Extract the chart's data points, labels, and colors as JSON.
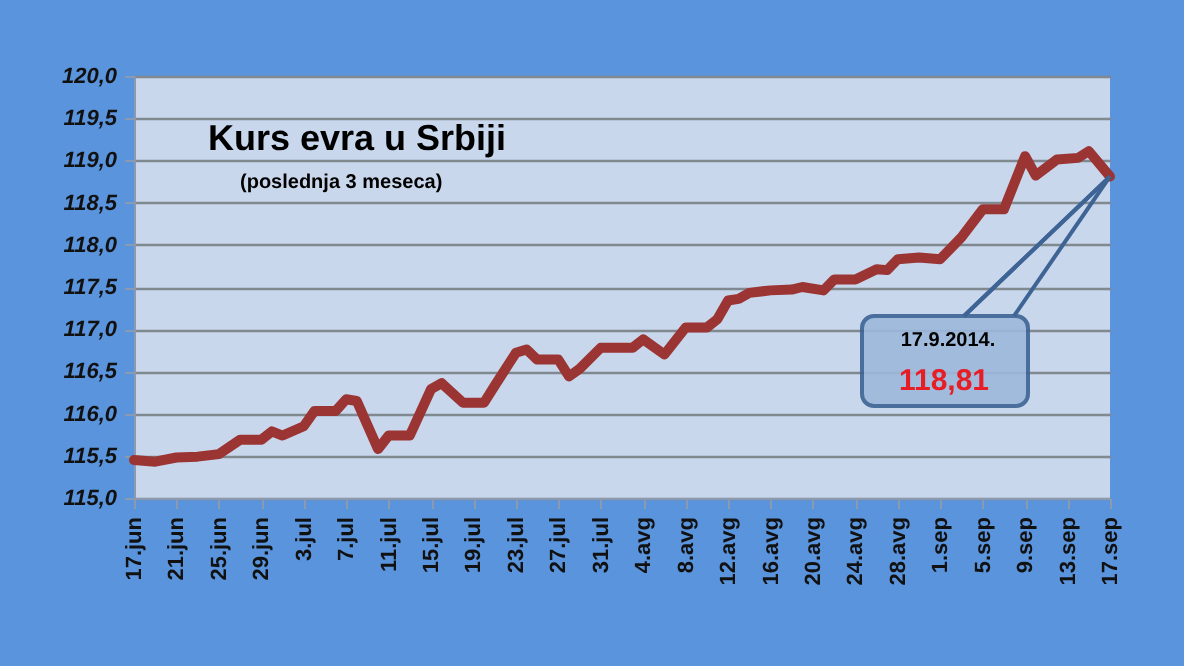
{
  "chart_data": {
    "type": "line",
    "title": "Kurs evra u Srbiji",
    "subtitle": "(poslednja 3 meseca)",
    "x": [
      "2014-06-17",
      "2014-06-19",
      "2014-06-21",
      "2014-06-23",
      "2014-06-25",
      "2014-06-27",
      "2014-06-29",
      "2014-06-30",
      "2014-07-01",
      "2014-07-03",
      "2014-07-04",
      "2014-07-06",
      "2014-07-07",
      "2014-07-08",
      "2014-07-10",
      "2014-07-11",
      "2014-07-13",
      "2014-07-15",
      "2014-07-16",
      "2014-07-18",
      "2014-07-20",
      "2014-07-21",
      "2014-07-23",
      "2014-07-24",
      "2014-07-25",
      "2014-07-27",
      "2014-07-28",
      "2014-07-29",
      "2014-07-31",
      "2014-08-03",
      "2014-08-04",
      "2014-08-06",
      "2014-08-08",
      "2014-08-10",
      "2014-08-11",
      "2014-08-12",
      "2014-08-13",
      "2014-08-14",
      "2014-08-16",
      "2014-08-18",
      "2014-08-19",
      "2014-08-21",
      "2014-08-22",
      "2014-08-24",
      "2014-08-26",
      "2014-08-27",
      "2014-08-28",
      "2014-08-30",
      "2014-09-01",
      "2014-09-03",
      "2014-09-05",
      "2014-09-07",
      "2014-09-09",
      "2014-09-10",
      "2014-09-12",
      "2014-09-14",
      "2014-09-15",
      "2014-09-17"
    ],
    "series": [
      {
        "color": "#9b3533",
        "values": [
          115.45,
          115.43,
          115.48,
          115.49,
          115.52,
          115.69,
          115.69,
          115.79,
          115.74,
          115.85,
          116.03,
          116.03,
          116.17,
          116.15,
          115.58,
          115.74,
          115.74,
          116.29,
          116.36,
          116.13,
          116.13,
          116.33,
          116.72,
          116.76,
          116.64,
          116.64,
          116.44,
          116.53,
          116.78,
          116.78,
          116.88,
          116.7,
          117.02,
          117.02,
          117.12,
          117.34,
          117.36,
          117.43,
          117.46,
          117.47,
          117.5,
          117.46,
          117.59,
          117.59,
          117.71,
          117.7,
          117.83,
          117.85,
          117.83,
          118.09,
          118.42,
          118.42,
          119.05,
          118.82,
          119.01,
          119.03,
          119.11,
          118.81
        ]
      }
    ],
    "xlim": [
      "2014-06-17",
      "2014-09-17"
    ],
    "xticks": [
      {
        "value": "2014-06-17",
        "label": "17.jun"
      },
      {
        "value": "2014-06-21",
        "label": "21.jun"
      },
      {
        "value": "2014-06-25",
        "label": "25.jun"
      },
      {
        "value": "2014-06-29",
        "label": "29.jun"
      },
      {
        "value": "2014-07-03",
        "label": "3.jul"
      },
      {
        "value": "2014-07-07",
        "label": "7.jul"
      },
      {
        "value": "2014-07-11",
        "label": "11.jul"
      },
      {
        "value": "2014-07-15",
        "label": "15.jul"
      },
      {
        "value": "2014-07-19",
        "label": "19.jul"
      },
      {
        "value": "2014-07-23",
        "label": "23.jul"
      },
      {
        "value": "2014-07-27",
        "label": "27.jul"
      },
      {
        "value": "2014-07-31",
        "label": "31.jul"
      },
      {
        "value": "2014-08-04",
        "label": "4.avg"
      },
      {
        "value": "2014-08-08",
        "label": "8.avg"
      },
      {
        "value": "2014-08-12",
        "label": "12.avg"
      },
      {
        "value": "2014-08-16",
        "label": "16.avg"
      },
      {
        "value": "2014-08-20",
        "label": "20.avg"
      },
      {
        "value": "2014-08-24",
        "label": "24.avg"
      },
      {
        "value": "2014-08-28",
        "label": "28.avg"
      },
      {
        "value": "2014-09-01",
        "label": "1.sep"
      },
      {
        "value": "2014-09-05",
        "label": "5.sep"
      },
      {
        "value": "2014-09-09",
        "label": "9.sep"
      },
      {
        "value": "2014-09-13",
        "label": "13.sep"
      },
      {
        "value": "2014-09-17",
        "label": "17.sep"
      }
    ],
    "ylim": [
      115,
      120
    ],
    "yticks": [
      {
        "value": 115,
        "label": "115,0"
      },
      {
        "value": 115.5,
        "label": "115,5"
      },
      {
        "value": 116,
        "label": "116,0"
      },
      {
        "value": 116.5,
        "label": "116,5"
      },
      {
        "value": 117,
        "label": "117,0"
      },
      {
        "value": 117.5,
        "label": "117,5"
      },
      {
        "value": 118,
        "label": "118,0"
      },
      {
        "value": 118.5,
        "label": "118,5"
      },
      {
        "value": 119,
        "label": "119,0"
      },
      {
        "value": 119.5,
        "label": "119,5"
      },
      {
        "value": 120,
        "label": "120,0"
      }
    ],
    "grid": "y",
    "marker": "none",
    "line_style": "solid",
    "annotations": [
      {
        "text": "17.9.2014.",
        "x": "2014-09-17",
        "y": 118.81
      },
      "118,81"
    ]
  }
}
